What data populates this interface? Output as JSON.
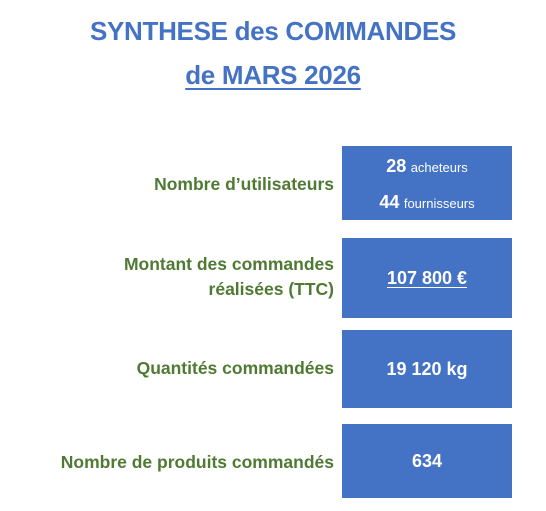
{
  "title": {
    "line1": "SYNTHESE des COMMANDES",
    "line2": "de MARS 2026"
  },
  "rows": [
    {
      "label": "Nombre d’utilisateurs",
      "buyers_count": "28",
      "buyers_label": "acheteurs",
      "suppliers_count": "44",
      "suppliers_label": "fournisseurs"
    },
    {
      "label_line1": "Montant des commandes",
      "label_line2": "réalisées (TTC)",
      "value": "107 800 €"
    },
    {
      "label": "Quantités commandées",
      "value": "19 120 kg"
    },
    {
      "label": "Nombre de produits commandés",
      "value": "634"
    }
  ],
  "colors": {
    "title": "#4472c4",
    "label": "#4f7a33",
    "box_fill": "#4472c4",
    "box_text": "#ffffff"
  }
}
